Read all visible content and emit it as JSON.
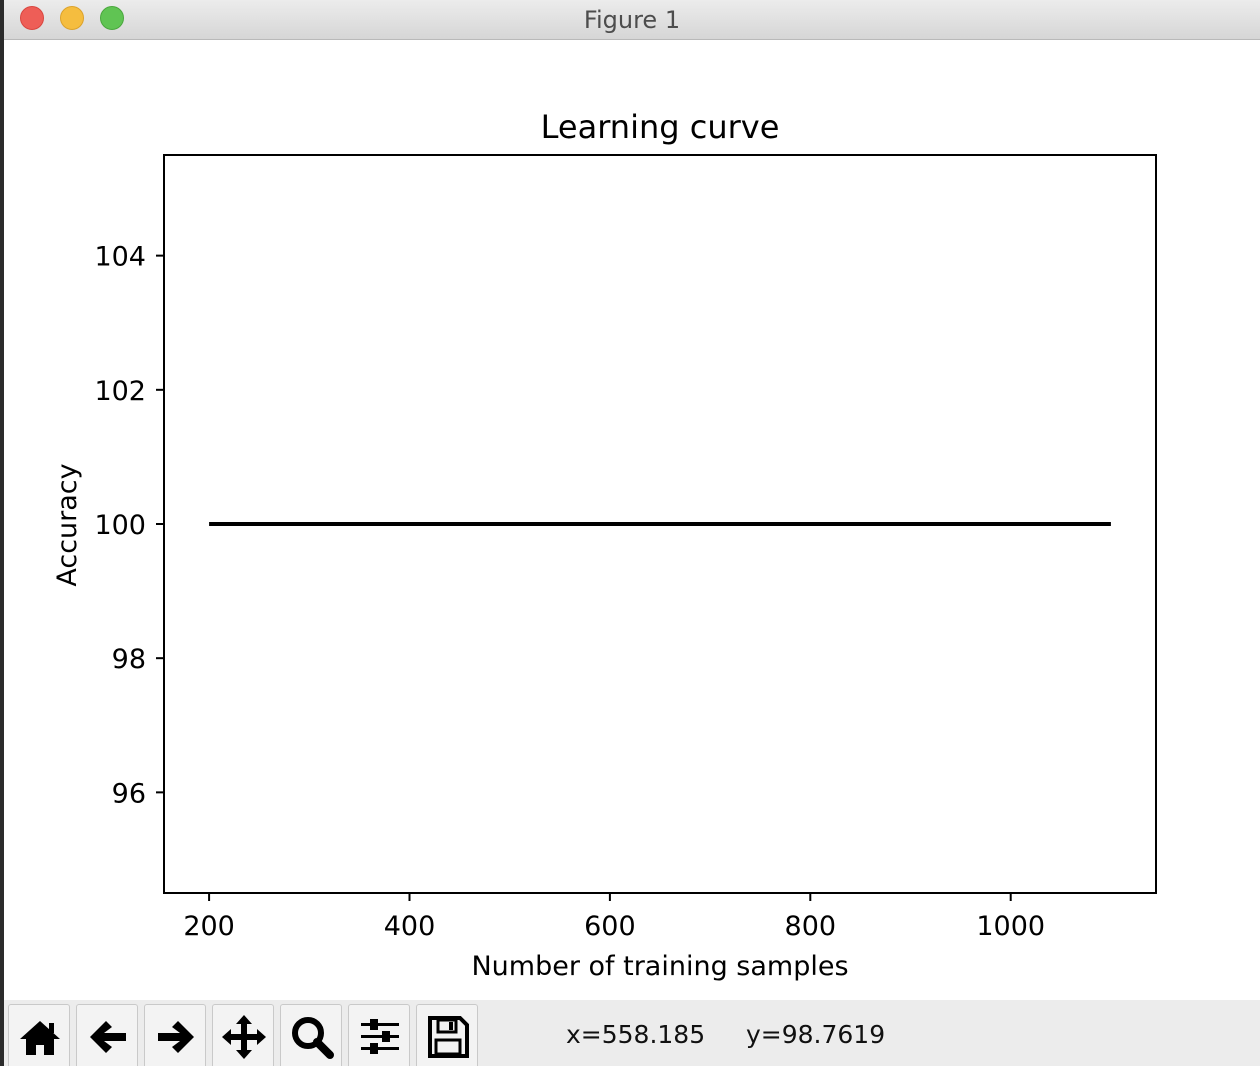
{
  "window": {
    "title": "Figure 1"
  },
  "chart_data": {
    "type": "line",
    "title": "Learning curve",
    "xlabel": "Number of training samples",
    "ylabel": "Accuracy",
    "xlim": [
      155,
      1145
    ],
    "ylim": [
      94.5,
      105.5
    ],
    "xticks": [
      200,
      400,
      600,
      800,
      1000
    ],
    "yticks": [
      96,
      98,
      100,
      102,
      104
    ],
    "series": [
      {
        "color": "#000000",
        "x": [
          200,
          1100
        ],
        "y": [
          100,
          100
        ]
      }
    ],
    "grid": false
  },
  "toolbar": {
    "buttons": [
      {
        "name": "home-button",
        "icon": "home-icon"
      },
      {
        "name": "back-button",
        "icon": "arrow-left-icon"
      },
      {
        "name": "forward-button",
        "icon": "arrow-right-icon"
      },
      {
        "name": "pan-button",
        "icon": "move-icon"
      },
      {
        "name": "zoom-button",
        "icon": "magnifier-icon"
      },
      {
        "name": "configure-subplots-button",
        "icon": "sliders-icon"
      },
      {
        "name": "save-button",
        "icon": "floppy-disk-icon"
      }
    ],
    "x_readout": "x=558.185",
    "y_readout": "y=98.7619"
  }
}
